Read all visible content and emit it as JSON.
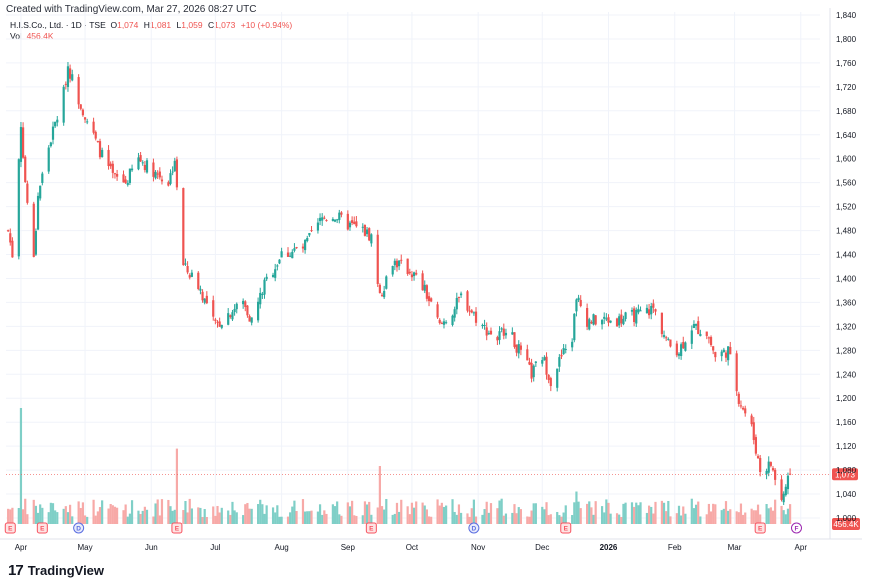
{
  "header": {
    "created_text": "Created with TradingView.com, Mar 27, 2026 08:27 UTC"
  },
  "legend": {
    "symbol": "H.I.S.Co., Ltd. · 1D · TSE",
    "open_label": "O",
    "open": "1,074",
    "high_label": "H",
    "high": "1,081",
    "low_label": "L",
    "low": "1,059",
    "close_label": "C",
    "close": "1,073",
    "change": "+10 (+0.94%)",
    "vol_label": "Vol",
    "vol": "456.4K"
  },
  "branding": {
    "logo": "17",
    "name": "TradingView"
  },
  "colors": {
    "up": "#26a69a",
    "down": "#ef5350",
    "vol_up": "#7fcfc7",
    "vol_down": "#f7a9a7",
    "grid": "#f0f3fa",
    "last_price_badge": "#ef5350"
  },
  "chart_data": {
    "type": "candlestick",
    "title": "H.I.S.Co., Ltd. · 1D · TSE",
    "price_axis": {
      "ticks": [
        "1,840",
        "1,800",
        "1,760",
        "1,720",
        "1,680",
        "1,640",
        "1,600",
        "1,560",
        "1,520",
        "1,480",
        "1,440",
        "1,400",
        "1,360",
        "1,320",
        "1,280",
        "1,240",
        "1,200",
        "1,160",
        "1,120",
        "1,080",
        "1,040",
        "1,000"
      ],
      "range": [
        990,
        1845
      ]
    },
    "time_axis": {
      "ticks": [
        "Apr",
        "May",
        "Jun",
        "Jul",
        "Aug",
        "Sep",
        "Oct",
        "Nov",
        "Dec",
        "2026",
        "Feb",
        "Mar",
        "Apr"
      ],
      "tick_dates": [
        "2025-04-01",
        "2025-05-01",
        "2025-06-01",
        "2025-07-01",
        "2025-08-01",
        "2025-09-01",
        "2025-10-01",
        "2025-11-01",
        "2025-12-01",
        "2026-01-01",
        "2026-02-01",
        "2026-03-01",
        "2026-04-01"
      ]
    },
    "last_price": "1,073",
    "last_volume": "456.4K",
    "events": [
      {
        "type": "earnings",
        "label": "E",
        "date": "2025-03-27"
      },
      {
        "type": "earnings",
        "label": "E",
        "date": "2025-04-11"
      },
      {
        "type": "dividend",
        "label": "D",
        "date": "2025-04-28"
      },
      {
        "type": "earnings",
        "label": "E",
        "date": "2025-06-13"
      },
      {
        "type": "earnings",
        "label": "E",
        "date": "2025-09-12"
      },
      {
        "type": "dividend",
        "label": "D",
        "date": "2025-10-30"
      },
      {
        "type": "earnings",
        "label": "E",
        "date": "2025-12-12"
      },
      {
        "type": "earnings",
        "label": "E",
        "date": "2026-03-13"
      },
      {
        "type": "future",
        "label": "F",
        "date": "2026-03-30"
      }
    ],
    "path": [
      [
        "2025-03-26",
        1480
      ],
      [
        "2025-03-28",
        1440
      ],
      [
        "2025-04-01",
        1660
      ],
      [
        "2025-04-03",
        1560
      ],
      [
        "2025-04-07",
        1430
      ],
      [
        "2025-04-09",
        1540
      ],
      [
        "2025-04-14",
        1620
      ],
      [
        "2025-04-21",
        1710
      ],
      [
        "2025-04-23",
        1755
      ],
      [
        "2025-04-28",
        1700
      ],
      [
        "2025-05-07",
        1620
      ],
      [
        "2025-05-14",
        1570
      ],
      [
        "2025-05-20",
        1560
      ],
      [
        "2025-05-26",
        1600
      ],
      [
        "2025-06-02",
        1580
      ],
      [
        "2025-06-09",
        1560
      ],
      [
        "2025-06-12",
        1600
      ],
      [
        "2025-06-13",
        1545
      ],
      [
        "2025-06-16",
        1420
      ],
      [
        "2025-06-23",
        1390
      ],
      [
        "2025-07-01",
        1320
      ],
      [
        "2025-07-08",
        1345
      ],
      [
        "2025-07-14",
        1360
      ],
      [
        "2025-07-18",
        1330
      ],
      [
        "2025-07-24",
        1390
      ],
      [
        "2025-08-01",
        1440
      ],
      [
        "2025-08-11",
        1450
      ],
      [
        "2025-08-20",
        1500
      ],
      [
        "2025-08-26",
        1505
      ],
      [
        "2025-09-01",
        1490
      ],
      [
        "2025-09-08",
        1480
      ],
      [
        "2025-09-12",
        1470
      ],
      [
        "2025-09-16",
        1370
      ],
      [
        "2025-09-22",
        1430
      ],
      [
        "2025-10-01",
        1410
      ],
      [
        "2025-10-07",
        1380
      ],
      [
        "2025-10-14",
        1320
      ],
      [
        "2025-10-21",
        1350
      ],
      [
        "2025-10-24",
        1370
      ],
      [
        "2025-11-03",
        1320
      ],
      [
        "2025-11-10",
        1300
      ],
      [
        "2025-11-14",
        1320
      ],
      [
        "2025-11-20",
        1280
      ],
      [
        "2025-11-26",
        1240
      ],
      [
        "2025-12-01",
        1270
      ],
      [
        "2025-12-05",
        1230
      ],
      [
        "2025-12-10",
        1270
      ],
      [
        "2025-12-15",
        1300
      ],
      [
        "2025-12-17",
        1370
      ],
      [
        "2025-12-22",
        1330
      ],
      [
        "2026-01-05",
        1330
      ],
      [
        "2026-01-15",
        1340
      ],
      [
        "2026-01-22",
        1350
      ],
      [
        "2026-01-29",
        1290
      ],
      [
        "2026-02-03",
        1280
      ],
      [
        "2026-02-09",
        1320
      ],
      [
        "2026-02-16",
        1310
      ],
      [
        "2026-02-20",
        1270
      ],
      [
        "2026-02-26",
        1280
      ],
      [
        "2026-03-03",
        1200
      ],
      [
        "2026-03-09",
        1150
      ],
      [
        "2026-03-13",
        1080
      ],
      [
        "2026-03-18",
        1090
      ],
      [
        "2026-03-23",
        1030
      ],
      [
        "2026-03-27",
        1073
      ]
    ],
    "volume_spikes": [
      {
        "date": "2025-04-01",
        "value": 100
      },
      {
        "date": "2025-06-13",
        "value": 65
      },
      {
        "date": "2025-09-16",
        "value": 50
      },
      {
        "date": "2025-12-17",
        "value": 28
      }
    ],
    "grid": true,
    "legend_position": "top-left"
  }
}
